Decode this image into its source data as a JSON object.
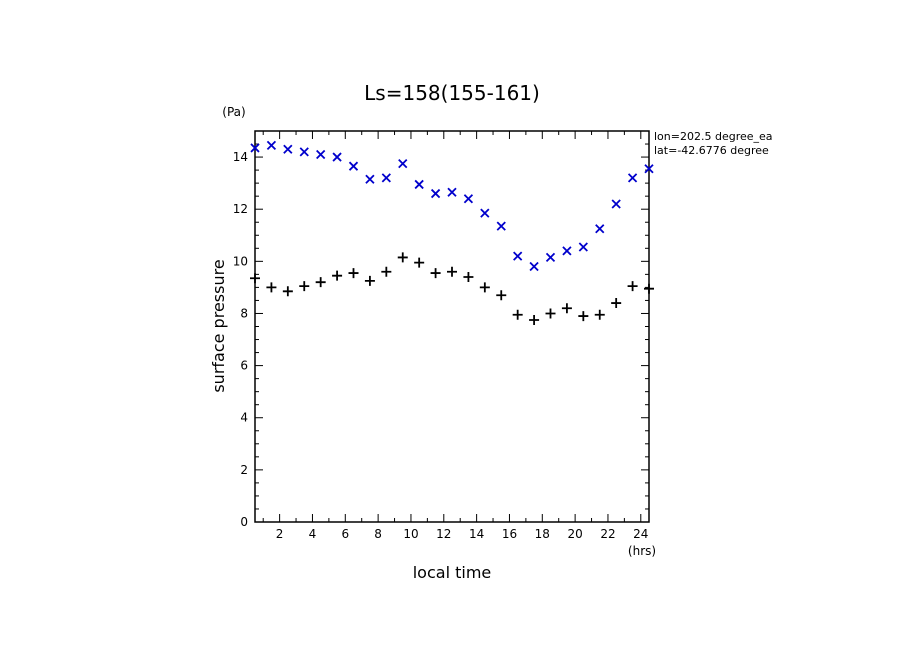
{
  "chart_data": {
    "type": "scatter",
    "title": "Ls=158(155-161)",
    "xlabel": "local time",
    "ylabel": "surface pressure",
    "x_unit": "(hrs)",
    "y_unit": "(Pa)",
    "xlim": [
      0.5,
      24.5
    ],
    "ylim": [
      0,
      15
    ],
    "x_ticks": [
      2,
      4,
      6,
      8,
      10,
      12,
      14,
      16,
      18,
      20,
      22,
      24
    ],
    "y_ticks": [
      0,
      2,
      4,
      6,
      8,
      10,
      12,
      14
    ],
    "annotations": [
      "lon=202.5 degree_ea",
      "lat=-42.6776 degree"
    ],
    "grid": false,
    "legend": "none",
    "series": [
      {
        "marker": "x",
        "color": "#0000cc",
        "x": [
          0.5,
          1.5,
          2.5,
          3.5,
          4.5,
          5.5,
          6.5,
          7.5,
          8.5,
          9.5,
          10.5,
          11.5,
          12.5,
          13.5,
          14.5,
          15.5,
          16.5,
          17.5,
          18.5,
          19.5,
          20.5,
          21.5,
          22.5,
          23.5,
          24.5
        ],
        "y": [
          14.35,
          14.45,
          14.3,
          14.2,
          14.1,
          14.0,
          13.65,
          13.15,
          13.2,
          13.75,
          12.95,
          12.6,
          12.65,
          12.4,
          11.85,
          11.35,
          10.2,
          9.8,
          10.15,
          10.4,
          10.55,
          11.25,
          12.2,
          13.2,
          13.55
        ]
      },
      {
        "marker": "+",
        "color": "#000000",
        "x": [
          0.5,
          1.5,
          2.5,
          3.5,
          4.5,
          5.5,
          6.5,
          7.5,
          8.5,
          9.5,
          10.5,
          11.5,
          12.5,
          13.5,
          14.5,
          15.5,
          16.5,
          17.5,
          18.5,
          19.5,
          20.5,
          21.5,
          22.5,
          23.5,
          24.5
        ],
        "y": [
          9.35,
          9.0,
          8.85,
          9.05,
          9.2,
          9.45,
          9.55,
          9.25,
          9.6,
          10.15,
          9.95,
          9.55,
          9.6,
          9.4,
          9.0,
          8.7,
          7.95,
          7.75,
          8.0,
          8.2,
          7.9,
          7.95,
          8.4,
          9.05,
          8.95
        ]
      }
    ]
  }
}
